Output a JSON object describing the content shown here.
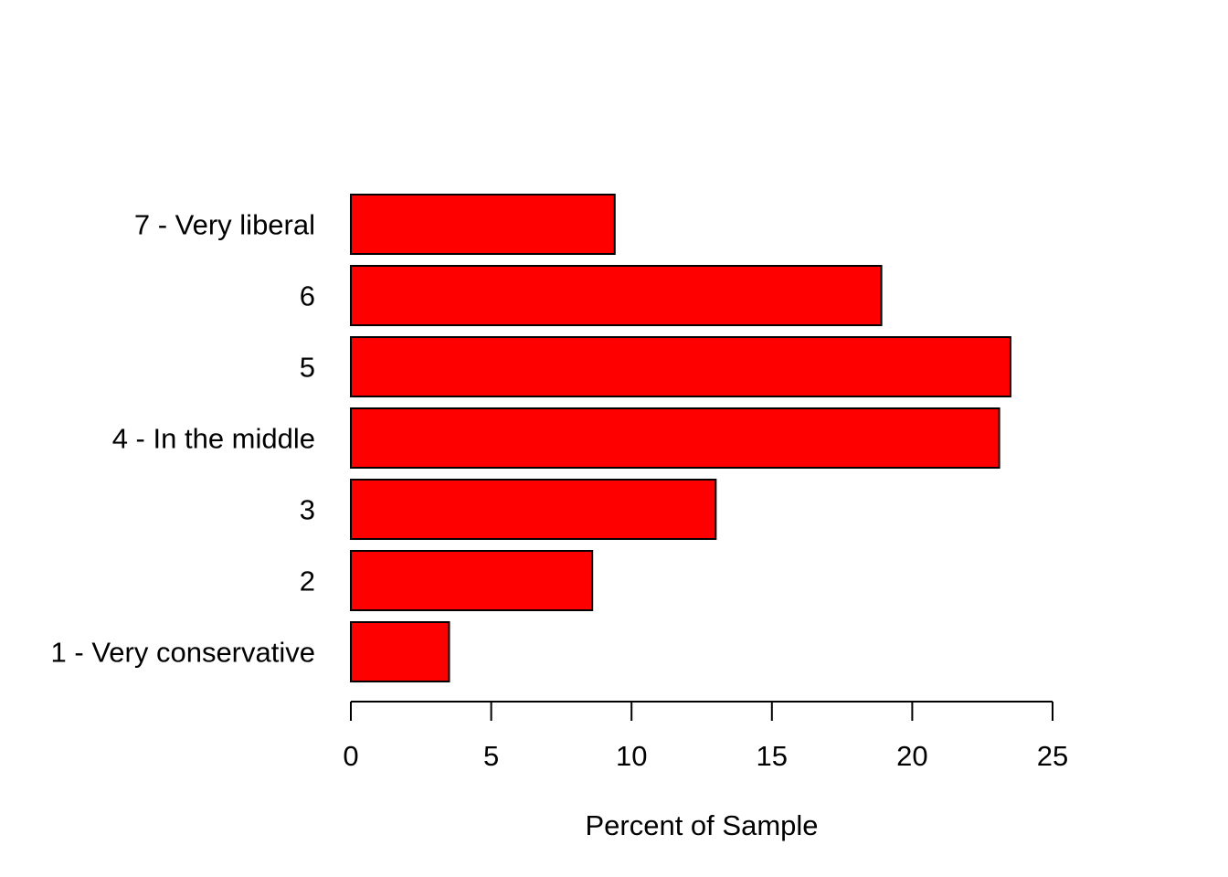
{
  "chart_data": {
    "type": "bar",
    "orientation": "horizontal",
    "title": "",
    "xlabel": "Percent of Sample",
    "ylabel": "",
    "categories": [
      "1 - Very conservative",
      "2",
      "3",
      "4 - In the middle",
      "5",
      "6",
      "7 - Very liberal"
    ],
    "values": [
      3.5,
      8.6,
      13.0,
      23.1,
      23.5,
      18.9,
      9.4
    ],
    "xlim": [
      0,
      25
    ],
    "xticks": [
      "0",
      "5",
      "10",
      "15",
      "20",
      "25"
    ],
    "xtick_values": [
      0,
      5,
      10,
      15,
      20,
      25
    ],
    "grid": false,
    "bar_color": "#ff0000",
    "bar_edge_color": "#000000"
  }
}
